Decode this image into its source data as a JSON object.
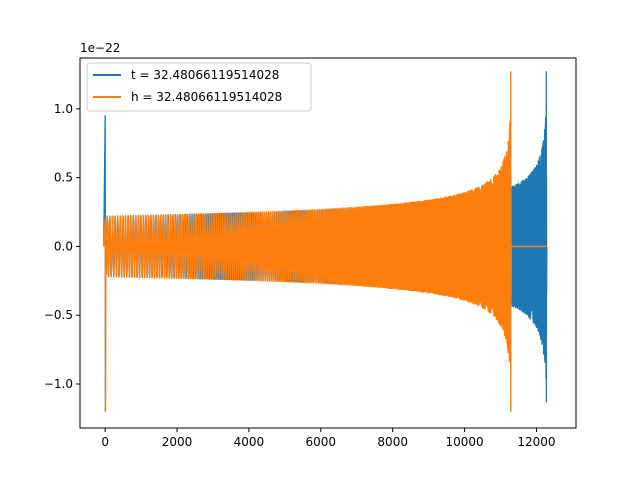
{
  "chart_data": {
    "type": "line",
    "offset_text": "1e−22",
    "xlim": [
      -700,
      13100
    ],
    "ylim": [
      -1.32,
      1.37
    ],
    "x_ticks": [
      0,
      2000,
      4000,
      6000,
      8000,
      10000,
      12000
    ],
    "x_tick_labels": [
      "0",
      "2000",
      "4000",
      "6000",
      "8000",
      "10000",
      "12000"
    ],
    "y_ticks": [
      -1.0,
      -0.5,
      0.0,
      0.5,
      1.0
    ],
    "y_tick_labels": [
      "−1.0",
      "−0.5",
      "0.0",
      "0.5",
      "1.0"
    ],
    "grid": false,
    "legend_position": "upper-left",
    "series": [
      {
        "name": "t = 32.48066119514028",
        "color": "#1f77b4",
        "x_start": 0,
        "x_end": 12280,
        "merger_x": 12280,
        "early_peak_x": 0,
        "early_peak_amplitude": [
          0.95,
          -1.2
        ],
        "inspiral_amplitude": 0.22,
        "merger_amplitude": [
          1.27,
          -1.13
        ],
        "tail_value": 0.0
      },
      {
        "name": "h = 32.48066119514028",
        "color": "#ff7f0e",
        "x_start": 0,
        "x_end": 12280,
        "merger_x": 11290,
        "early_peak_x": 0,
        "early_peak_amplitude": [
          0.2,
          -1.2
        ],
        "flat_segment_x": [
          100,
          1000
        ],
        "inspiral_amplitude": 0.22,
        "merger_amplitude": [
          1.27,
          -1.2
        ],
        "tail_value": 0.0
      }
    ]
  }
}
